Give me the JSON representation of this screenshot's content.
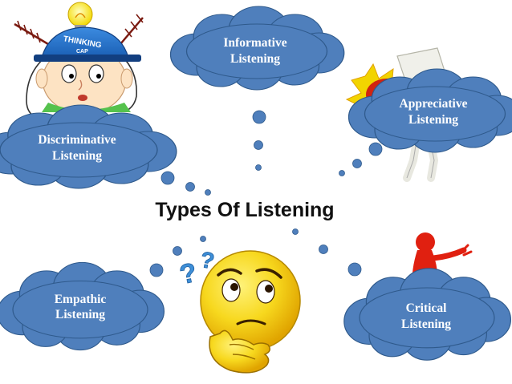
{
  "title": "Types Of Listening",
  "clouds": {
    "informative": {
      "line1": "Informative",
      "line2": "Listening"
    },
    "discriminative": {
      "line1": "Discriminative",
      "line2": "Listening"
    },
    "appreciative": {
      "line1": "Appreciative",
      "line2": "Listening"
    },
    "empathic": {
      "line1": "Empathic",
      "line2": "Listening"
    },
    "critical": {
      "line1": "Critical",
      "line2": "Listening"
    }
  },
  "thinking_cap": {
    "line1": "THINKING",
    "line2": "CAP"
  },
  "colors": {
    "cloud_fill": "#4f7fbc",
    "cloud_stroke": "#2f5a8c",
    "bubble_fill": "#4f7fbc",
    "smiley_yellow": "#f7d81e",
    "question_mark_blue": "#3e8fd8",
    "red_figure": "#e02010"
  }
}
